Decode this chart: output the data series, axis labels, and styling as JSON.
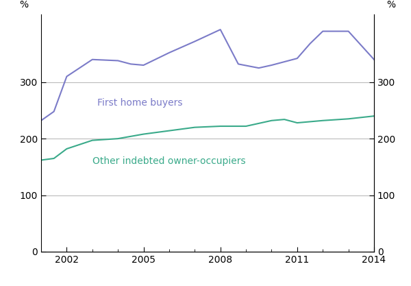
{
  "years_fhb": [
    2001,
    2001.5,
    2002,
    2003,
    2004,
    2004.5,
    2005,
    2006,
    2007,
    2008,
    2008.7,
    2009.5,
    2010,
    2011,
    2011.5,
    2012,
    2013,
    2014
  ],
  "values_fhb": [
    232,
    248,
    310,
    340,
    338,
    332,
    330,
    352,
    372,
    393,
    332,
    325,
    330,
    342,
    368,
    390,
    390,
    340
  ],
  "years_other": [
    2001,
    2001.5,
    2002,
    2003,
    2004,
    2005,
    2006,
    2007,
    2008,
    2009,
    2010,
    2010.5,
    2011,
    2012,
    2013,
    2014
  ],
  "values_other": [
    162,
    165,
    182,
    197,
    200,
    208,
    214,
    220,
    222,
    222,
    232,
    234,
    228,
    232,
    235,
    240
  ],
  "color_fhb": "#7b7bc8",
  "color_other": "#3aaa8a",
  "ylabel_left": "%",
  "ylabel_right": "%",
  "ylim": [
    0,
    420
  ],
  "yticks": [
    0,
    100,
    200,
    300
  ],
  "xticks_major": [
    2002,
    2005,
    2008,
    2011,
    2014
  ],
  "xlim": [
    2001,
    2014
  ],
  "label_fhb": "First home buyers",
  "label_other": "Other indebted owner-occupiers",
  "grid_color": "#bbbbbb",
  "linewidth": 1.5
}
